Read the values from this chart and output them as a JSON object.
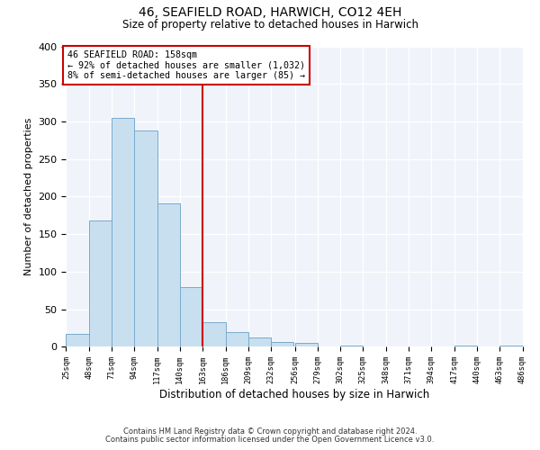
{
  "title": "46, SEAFIELD ROAD, HARWICH, CO12 4EH",
  "subtitle": "Size of property relative to detached houses in Harwich",
  "xlabel": "Distribution of detached houses by size in Harwich",
  "ylabel": "Number of detached properties",
  "footnote1": "Contains HM Land Registry data © Crown copyright and database right 2024.",
  "footnote2": "Contains public sector information licensed under the Open Government Licence v3.0.",
  "bar_edges": [
    25,
    48,
    71,
    94,
    117,
    140,
    163,
    186,
    209,
    232,
    256,
    279,
    302,
    325,
    348,
    371,
    394,
    417,
    440,
    463,
    486
  ],
  "bar_heights": [
    17,
    168,
    305,
    288,
    191,
    79,
    33,
    20,
    12,
    6,
    5,
    0,
    2,
    0,
    0,
    0,
    0,
    2,
    0,
    2
  ],
  "bar_color": "#c8dff0",
  "bar_edge_color": "#7aaacc",
  "property_line_x": 163,
  "property_line_color": "#cc0000",
  "annotation_title": "46 SEAFIELD ROAD: 158sqm",
  "annotation_line1": "← 92% of detached houses are smaller (1,032)",
  "annotation_line2": "8% of semi-detached houses are larger (85) →",
  "annotation_box_color": "#cc0000",
  "plot_bg_color": "#f0f4fa",
  "fig_bg_color": "#ffffff",
  "ylim": [
    0,
    400
  ],
  "tick_labels": [
    "25sqm",
    "48sqm",
    "71sqm",
    "94sqm",
    "117sqm",
    "140sqm",
    "163sqm",
    "186sqm",
    "209sqm",
    "232sqm",
    "256sqm",
    "279sqm",
    "302sqm",
    "325sqm",
    "348sqm",
    "371sqm",
    "394sqm",
    "417sqm",
    "440sqm",
    "463sqm",
    "486sqm"
  ]
}
